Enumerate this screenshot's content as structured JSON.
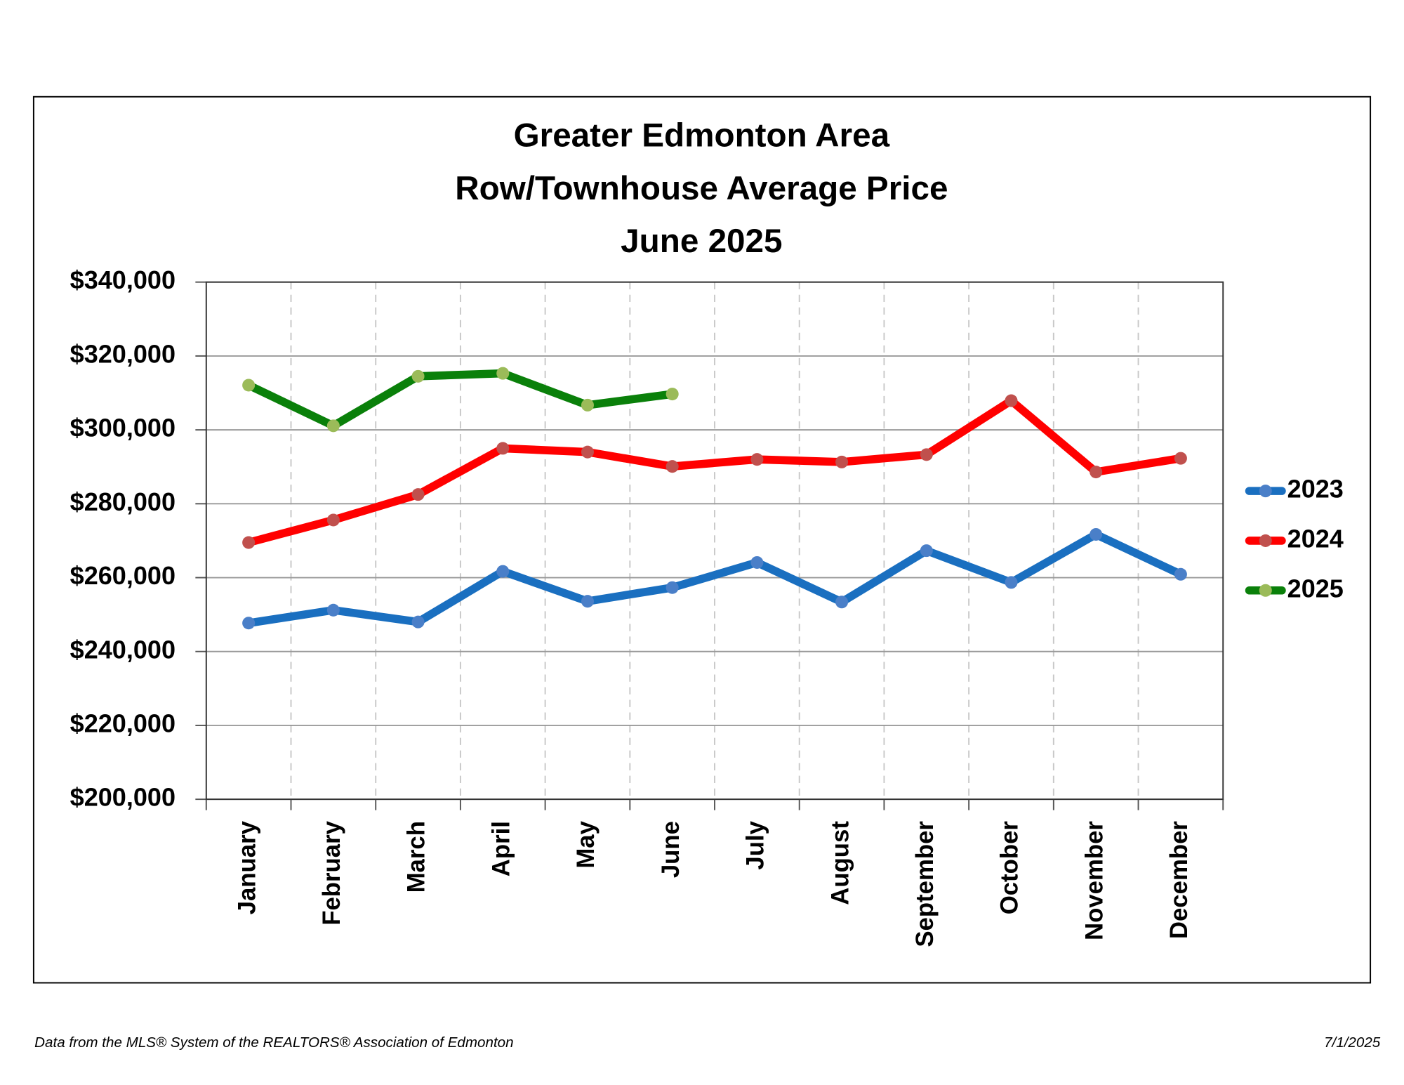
{
  "chart_data": {
    "type": "line",
    "title": [
      "Greater Edmonton Area",
      "Row/Townhouse Average Price",
      "June 2025"
    ],
    "categories": [
      "January",
      "February",
      "March",
      "April",
      "May",
      "June",
      "July",
      "August",
      "September",
      "October",
      "November",
      "December"
    ],
    "series": [
      {
        "name": "2023",
        "color": "#1a6fc0",
        "marker_color": "#4a7fc8",
        "values": [
          247700,
          251200,
          248000,
          261700,
          253600,
          257300,
          264100,
          253400,
          267300,
          258700,
          271700,
          260900
        ]
      },
      {
        "name": "2024",
        "color": "#ff0000",
        "marker_color": "#c0504d",
        "values": [
          269500,
          275600,
          282500,
          295000,
          294000,
          290100,
          292000,
          291300,
          293300,
          307900,
          288600,
          292300
        ]
      },
      {
        "name": "2025",
        "color": "#0a800a",
        "marker_color": "#9bbb59",
        "values": [
          312100,
          301100,
          314500,
          315300,
          306700,
          309700,
          null,
          null,
          null,
          null,
          null,
          null
        ]
      }
    ],
    "ylim": [
      200000,
      340000
    ],
    "yticks": [
      {
        "value": 200000,
        "label": "$200,000"
      },
      {
        "value": 220000,
        "label": "$220,000"
      },
      {
        "value": 240000,
        "label": "$240,000"
      },
      {
        "value": 260000,
        "label": "$260,000"
      },
      {
        "value": 280000,
        "label": "$280,000"
      },
      {
        "value": 300000,
        "label": "$300,000"
      },
      {
        "value": 320000,
        "label": "$320,000"
      },
      {
        "value": 340000,
        "label": "$340,000"
      }
    ],
    "grid": true,
    "legend": "right",
    "source": "Data from the MLS® System of the REALTORS® Association of Edmonton",
    "date": "7/1/2025"
  }
}
